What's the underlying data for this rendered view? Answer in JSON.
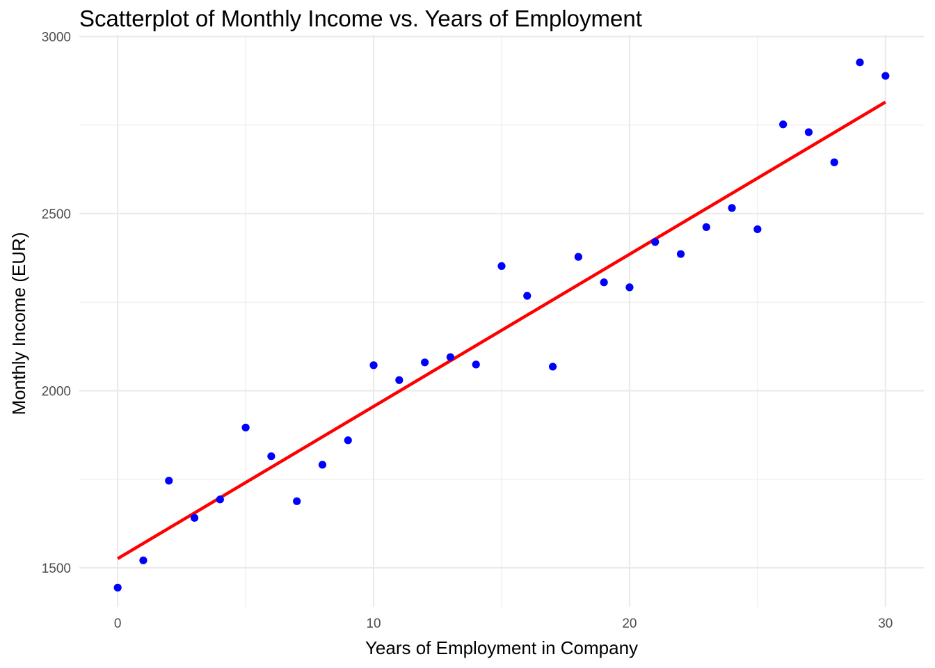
{
  "chart_data": {
    "type": "scatter",
    "title": "Scatterplot of Monthly Income vs. Years of Employment",
    "xlabel": "Years of Employment in Company",
    "ylabel": "Monthly Income (EUR)",
    "xlim": [
      -1.5,
      31.5
    ],
    "ylim": [
      1390,
      3005
    ],
    "x_ticks": [
      0,
      10,
      20,
      30
    ],
    "y_ticks": [
      1500,
      2000,
      2500,
      3000
    ],
    "grid": true,
    "point_color": "#0000ff",
    "series": [
      {
        "x": [
          0,
          1,
          2,
          3,
          4,
          5,
          6,
          7,
          8,
          9,
          10,
          11,
          12,
          13,
          14,
          15,
          16,
          17,
          18,
          19,
          20,
          21,
          22,
          23,
          24,
          25,
          26,
          27,
          28,
          29,
          30
        ],
        "y": [
          1444,
          1521,
          1746,
          1641,
          1693,
          1896,
          1815,
          1688,
          1791,
          1860,
          2072,
          2030,
          2080,
          2095,
          2074,
          2352,
          2268,
          2068,
          2378,
          2306,
          2292,
          2420,
          2386,
          2462,
          2516,
          2456,
          2752,
          2730,
          2645,
          2927,
          2889
        ]
      }
    ],
    "trend_line": {
      "color": "#ff0000",
      "x": [
        0,
        30
      ],
      "y": [
        1526,
        2815
      ]
    }
  }
}
